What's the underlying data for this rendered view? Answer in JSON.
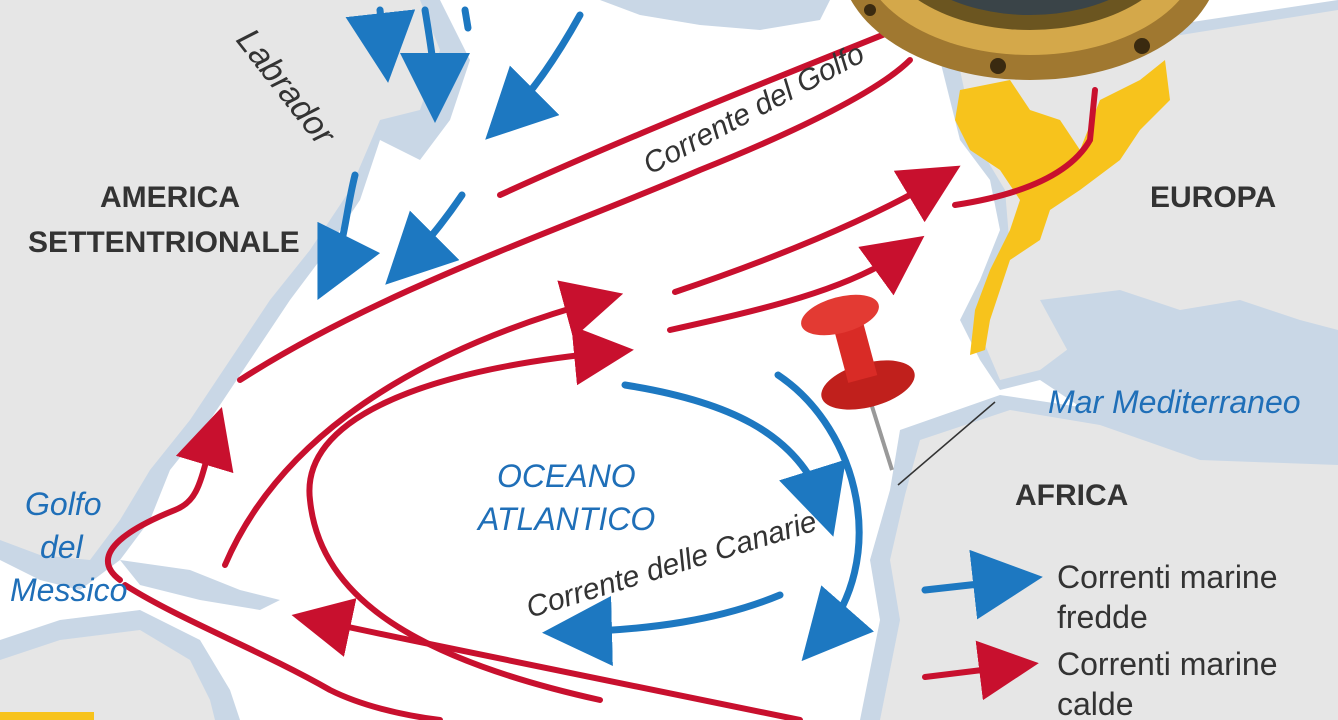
{
  "labels": {
    "labrador": "Labrador",
    "corrente_golfo": "Corrente del Golfo",
    "america": "AMERICA",
    "settentrionale": "SETTENTRIONALE",
    "europa": "EUROPA",
    "mar_mediterraneo": "Mar Mediterraneo",
    "oceano": "OCEANO",
    "atlantico": "ATLANTICO",
    "africa": "AFRICA",
    "golfo": "Golfo",
    "del": "del",
    "messico": "Messico",
    "corrente_canarie": "Corrente delle Canarie"
  },
  "legend": {
    "cold": {
      "line1": "Correnti marine",
      "line2": "fredde",
      "color": "#1d78c1"
    },
    "warm": {
      "line1": "Correnti marine",
      "line2": "calde",
      "color": "#c8102e"
    }
  },
  "colors": {
    "land": "#e6e6e6",
    "coast": "#c9d7e6",
    "highlight": "#f7c31c",
    "warm_current": "#c8102e",
    "cold_current": "#1d78c1",
    "pin": "#d92b26"
  },
  "icons": {
    "pin": "pushpin-icon",
    "porthole": "porthole-icon"
  }
}
